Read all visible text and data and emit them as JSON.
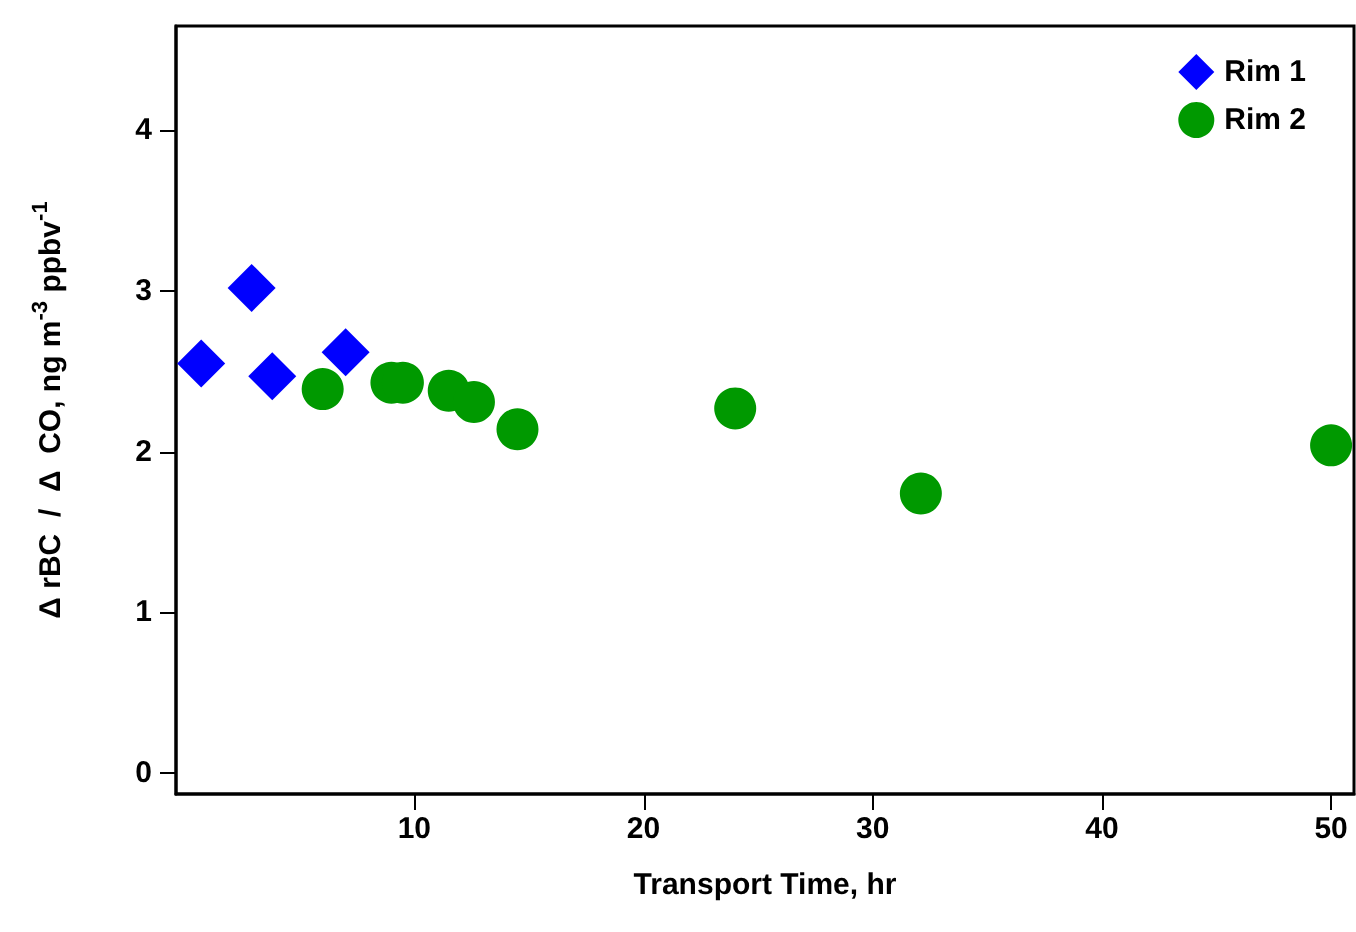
{
  "chart_data": {
    "type": "scatter",
    "xlabel": "Transport Time, hr",
    "ylabel": "Δ rBC  /  Δ  CO, ng m$^{-3}$ ppbv$^{-1}$",
    "xlim": [
      -0.4,
      51
    ],
    "xticks": [
      10,
      20,
      30,
      40,
      50
    ],
    "ylim": [
      -0.13,
      4.65
    ],
    "yticks": [
      0,
      1,
      2,
      3,
      4
    ],
    "grid": false,
    "legend": "top right",
    "series": [
      {
        "name": "Rim 1",
        "color": "#0000ff",
        "marker": "diamond",
        "x": [
          0.7,
          2.9,
          3.8,
          7.0
        ],
        "values": [
          2.55,
          3.02,
          2.47,
          2.62
        ]
      },
      {
        "name": "Rim 2",
        "color": "#009900",
        "marker": "circle",
        "x": [
          6.0,
          9.0,
          9.5,
          11.5,
          12.6,
          14.5,
          24.0,
          32.1,
          50.0
        ],
        "values": [
          2.39,
          2.43,
          2.43,
          2.38,
          2.31,
          2.14,
          2.27,
          1.74,
          2.04
        ]
      }
    ]
  }
}
